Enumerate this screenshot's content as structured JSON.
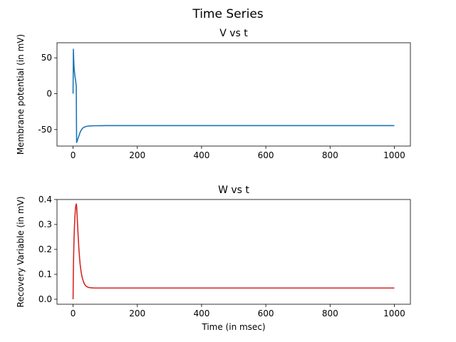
{
  "figure": {
    "suptitle": "Time Series"
  },
  "chart_data": [
    {
      "type": "line",
      "title": "V vs t",
      "xlabel": "",
      "ylabel": "Membrane potential (in mV)",
      "xlim": [
        -50,
        1050
      ],
      "ylim": [
        -73,
        71
      ],
      "xticks": [
        0,
        200,
        400,
        600,
        800,
        1000
      ],
      "yticks": [
        -50,
        0,
        50
      ],
      "grid": false,
      "color": "#1f77b4",
      "x": [
        0,
        1,
        2,
        3,
        4,
        5,
        6,
        7,
        8,
        9,
        10,
        11,
        12,
        13,
        15,
        18,
        21,
        25,
        30,
        35,
        40,
        45,
        50,
        60,
        70,
        80,
        90,
        100,
        120,
        150,
        200,
        300,
        400,
        500,
        600,
        700,
        800,
        900,
        1000
      ],
      "y": [
        0,
        62,
        48,
        38,
        32,
        28,
        24,
        21,
        18,
        14,
        10,
        -68,
        -67,
        -66,
        -63,
        -59,
        -55,
        -51,
        -48,
        -46.5,
        -45.8,
        -45.3,
        -45,
        -44.8,
        -44.7,
        -44.6,
        -44.6,
        -44.5,
        -44.5,
        -44.5,
        -44.5,
        -44.5,
        -44.5,
        -44.5,
        -44.5,
        -44.5,
        -44.5,
        -44.5,
        -44.5
      ]
    },
    {
      "type": "line",
      "title": "W vs t",
      "xlabel": "Time (in msec)",
      "ylabel": "Recovery Variable (in mV)",
      "xlim": [
        -50,
        1050
      ],
      "ylim": [
        -0.02,
        0.4
      ],
      "xticks": [
        0,
        200,
        400,
        600,
        800,
        1000
      ],
      "yticks": [
        0.0,
        0.1,
        0.2,
        0.3,
        0.4
      ],
      "ytick_labels": [
        "0.0",
        "0.1",
        "0.2",
        "0.3",
        "0.4"
      ],
      "grid": false,
      "color": "#d62728",
      "x": [
        0,
        1,
        2,
        3,
        4,
        5,
        6,
        7,
        8,
        9,
        10,
        11,
        12,
        14,
        16,
        18,
        20,
        22,
        25,
        28,
        32,
        36,
        40,
        45,
        50,
        60,
        70,
        80,
        100,
        150,
        200,
        300,
        400,
        500,
        600,
        700,
        800,
        900,
        1000
      ],
      "y": [
        0,
        0.12,
        0.19,
        0.24,
        0.28,
        0.31,
        0.335,
        0.355,
        0.37,
        0.378,
        0.382,
        0.375,
        0.35,
        0.3,
        0.25,
        0.205,
        0.17,
        0.14,
        0.11,
        0.09,
        0.072,
        0.06,
        0.053,
        0.049,
        0.047,
        0.0455,
        0.045,
        0.045,
        0.045,
        0.045,
        0.045,
        0.045,
        0.045,
        0.045,
        0.045,
        0.045,
        0.045,
        0.045,
        0.045
      ]
    }
  ]
}
